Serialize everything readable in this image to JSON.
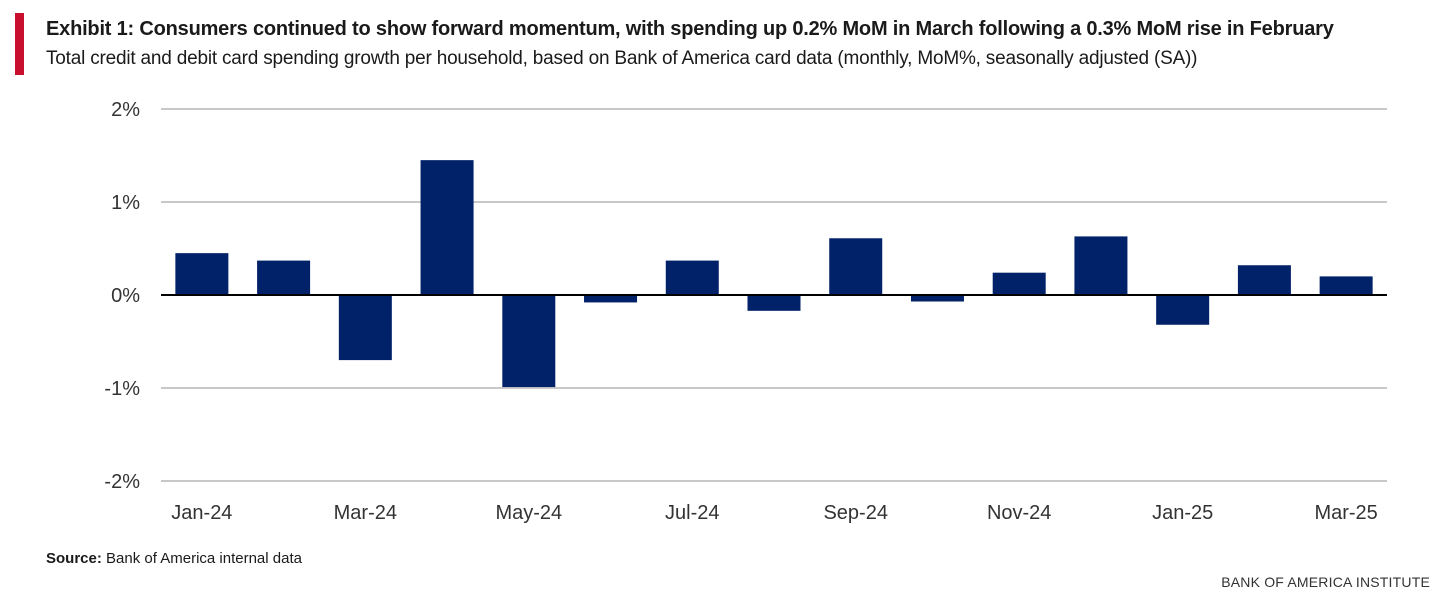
{
  "header": {
    "title": "Exhibit 1: Consumers continued to show forward momentum, with spending up 0.2% MoM in March following a 0.3% MoM rise in February",
    "subtitle": "Total credit and debit card spending growth per household, based on Bank of America card data (monthly, MoM%, seasonally adjusted (SA))"
  },
  "footer": {
    "source_label": "Source:",
    "source_text": " Bank of America internal data",
    "brand": "BANK OF AMERICA INSTITUTE"
  },
  "colors": {
    "accent": "#c8102e",
    "bar": "#012169",
    "grid": "#c8c8c8",
    "zero_line": "#000000"
  },
  "chart_data": {
    "type": "bar",
    "categories": [
      "Jan-24",
      "Feb-24",
      "Mar-24",
      "Apr-24",
      "May-24",
      "Jun-24",
      "Jul-24",
      "Aug-24",
      "Sep-24",
      "Oct-24",
      "Nov-24",
      "Dec-24",
      "Jan-25",
      "Feb-25",
      "Mar-25"
    ],
    "values": [
      0.45,
      0.37,
      -0.7,
      1.45,
      -0.99,
      -0.08,
      0.37,
      -0.17,
      0.61,
      -0.07,
      0.24,
      0.63,
      -0.32,
      0.32,
      0.2
    ],
    "x_tick_labels": [
      "Jan-24",
      "Mar-24",
      "May-24",
      "Jul-24",
      "Sep-24",
      "Nov-24",
      "Jan-25",
      "Mar-25"
    ],
    "y_ticks": [
      2,
      1,
      0,
      -1,
      -2
    ],
    "y_tick_labels": [
      "2%",
      "1%",
      "0%",
      "-1%",
      "-2%"
    ],
    "ylim": [
      -2,
      2
    ],
    "grid": true,
    "legend": "none",
    "title": "",
    "xlabel": "",
    "ylabel": ""
  }
}
